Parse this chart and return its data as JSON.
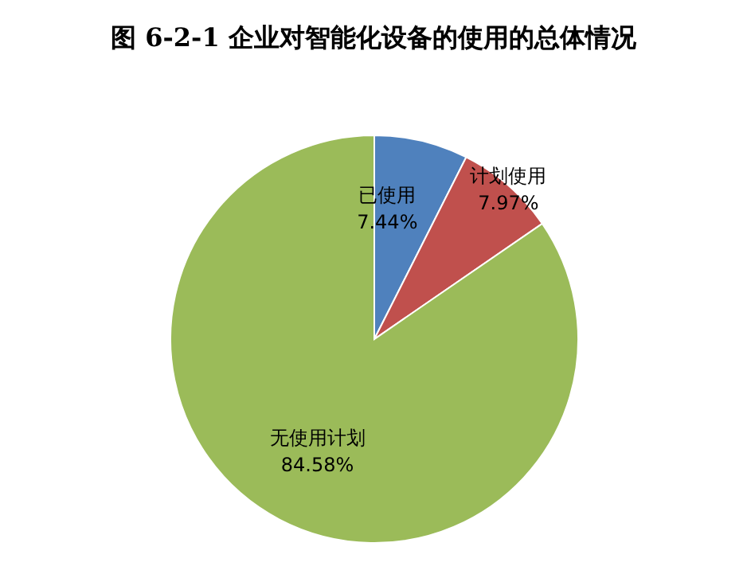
{
  "chart_data": {
    "type": "pie",
    "title": "图 6-2-1 企业对智能化设备的使用的总体情况",
    "categories": [
      "已使用",
      "计划使用",
      "无使用计划"
    ],
    "values": [
      7.44,
      7.97,
      84.58
    ],
    "value_labels": [
      "7.44%",
      "7.97%",
      "84.58%"
    ],
    "colors": [
      "#4f81bd",
      "#c0504d",
      "#9bbb59"
    ],
    "legend": false
  }
}
